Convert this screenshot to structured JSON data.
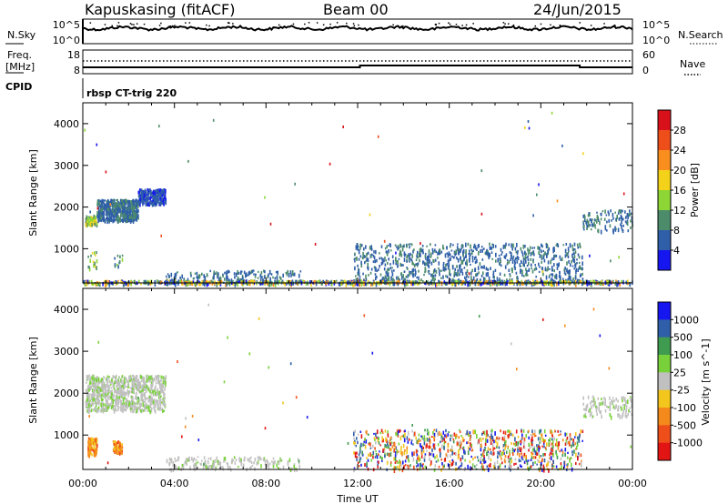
{
  "header": {
    "station": "Kapuskasing (fitACF)",
    "beam": "Beam 00",
    "date": "24/Jun/2015"
  },
  "strip": {
    "nsky_label": "N.Sky",
    "nsearch_label": "N.Search",
    "freq_label_1": "Freq.",
    "freq_label_2": "[MHz]",
    "nave_label": "Nave",
    "cpid_label": "CPID",
    "cpid_value": "rbsp CT-trig 220",
    "noise_left_ticks": [
      "10^5",
      "10^0"
    ],
    "noise_right_ticks": [
      "10^5",
      "10^0"
    ],
    "freq_left_ticks": [
      "18",
      "8"
    ],
    "nave_right_ticks": [
      "60",
      "0"
    ]
  },
  "chart_data": [
    {
      "type": "heatmap",
      "panel": "power",
      "xlabel": "",
      "ylabel": "Slant Range [km]",
      "colorbar_label": "Power [dB]",
      "colorbar_ticks": [
        "28",
        "24",
        "20",
        "16",
        "12",
        "8",
        "4"
      ],
      "colorbar_colors": [
        "#d9111a",
        "#ee4e1a",
        "#f98e1e",
        "#f4d21a",
        "#8ed636",
        "#4c8c6a",
        "#2f5fa8",
        "#1616f0"
      ],
      "x_ticks": [
        "00:00",
        "04:00",
        "08:00",
        "12:00",
        "16:00",
        "20:00",
        "00:00"
      ],
      "xlim_hours": [
        0,
        24
      ],
      "y_ticks": [
        "1000",
        "2000",
        "3000",
        "4000"
      ],
      "ylim_km": [
        180,
        4500
      ],
      "regions": [
        {
          "t": [
            0.1,
            0.6
          ],
          "range": [
            1600,
            1820
          ],
          "level": "12-20 dB"
        },
        {
          "t": [
            0.6,
            2.4
          ],
          "range": [
            1700,
            2200
          ],
          "level": "8-12 dB"
        },
        {
          "t": [
            2.4,
            3.6
          ],
          "range": [
            2100,
            2450
          ],
          "level": "4-8 dB"
        },
        {
          "t": [
            0.2,
            0.6
          ],
          "range": [
            550,
            950
          ],
          "level": "12-20 dB"
        },
        {
          "t": [
            1.3,
            1.7
          ],
          "range": [
            600,
            880
          ],
          "level": "8-16 dB"
        },
        {
          "t": [
            3.6,
            9.5
          ],
          "range": [
            200,
            500
          ],
          "level": "4-12 dB"
        },
        {
          "t": [
            11.8,
            21.8
          ],
          "range": [
            200,
            1150
          ],
          "level": "4-12 dB"
        },
        {
          "t": [
            21.8,
            24.0
          ],
          "range": [
            1450,
            1950
          ],
          "level": "4-12 dB"
        },
        {
          "t": [
            0.0,
            24.0
          ],
          "range": [
            180,
            260
          ],
          "level": "8-24 dB"
        }
      ]
    },
    {
      "type": "heatmap",
      "panel": "velocity",
      "xlabel": "Time UT",
      "ylabel": "Slant Range [km]",
      "colorbar_label": "Velocity [m s^-1]",
      "colorbar_ticks": [
        "1000",
        "500",
        "100",
        "25",
        "-25",
        "-100",
        "-500",
        "-1000"
      ],
      "colorbar_colors": [
        "#1616f0",
        "#2f5fa8",
        "#3f9b4f",
        "#78d13a",
        "#c0c0c0",
        "#f2c61c",
        "#f58a1c",
        "#ee4e1a",
        "#e21414"
      ],
      "x_ticks": [
        "00:00",
        "04:00",
        "08:00",
        "12:00",
        "16:00",
        "20:00",
        "00:00"
      ],
      "xlim_hours": [
        0,
        24
      ],
      "y_ticks": [
        "1000",
        "2000",
        "3000",
        "4000"
      ],
      "ylim_km": [
        180,
        4500
      ],
      "regions": [
        {
          "t": [
            0.1,
            3.6
          ],
          "range": [
            1600,
            2450
          ],
          "level": "-25 to 25 m/s"
        },
        {
          "t": [
            0.2,
            0.6
          ],
          "range": [
            550,
            950
          ],
          "level": "-500 to -100 m/s"
        },
        {
          "t": [
            1.3,
            1.7
          ],
          "range": [
            600,
            880
          ],
          "level": "-500 to -100 m/s"
        },
        {
          "t": [
            3.6,
            9.5
          ],
          "range": [
            200,
            500
          ],
          "level": "-25 to 25 m/s"
        },
        {
          "t": [
            11.8,
            21.8
          ],
          "range": [
            200,
            1150
          ],
          "level": "mixed"
        },
        {
          "t": [
            21.8,
            24.0
          ],
          "range": [
            1450,
            1950
          ],
          "level": "-25 to 25 m/s"
        }
      ]
    }
  ]
}
